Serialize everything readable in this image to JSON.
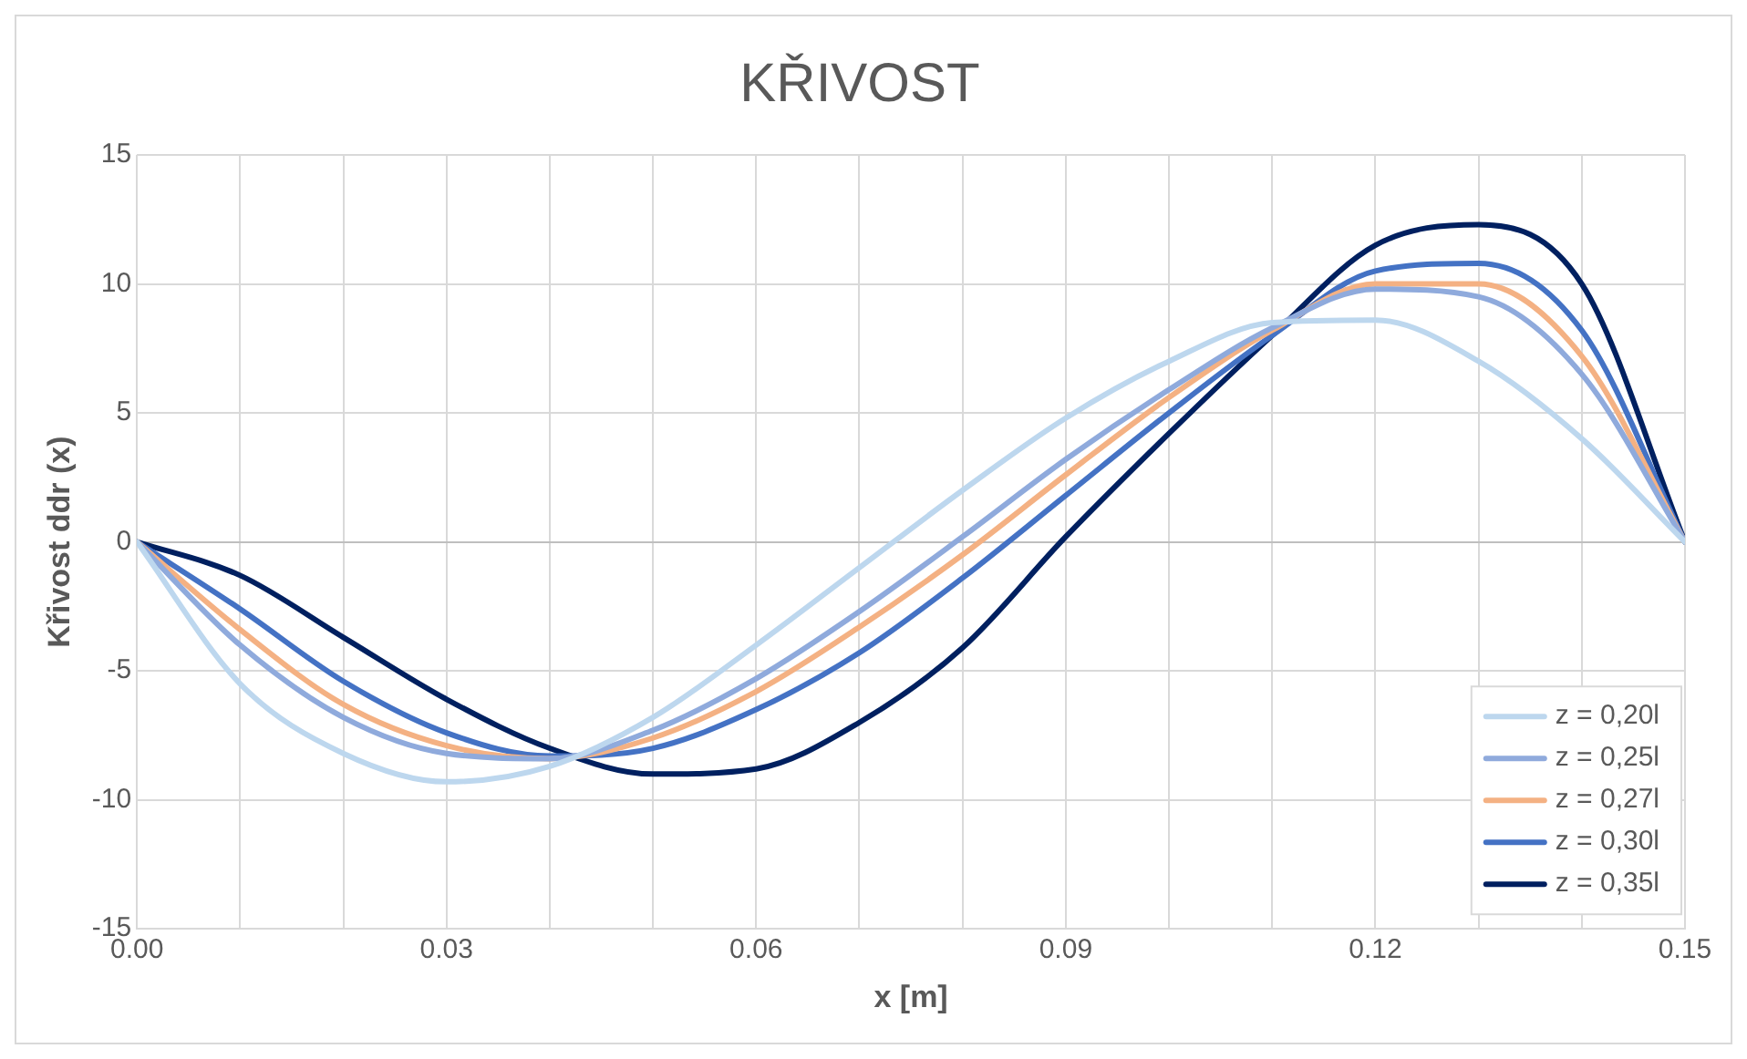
{
  "chart_data": {
    "type": "line",
    "title": "KŘIVOST",
    "xlabel": "x [m]",
    "ylabel": "Křivost ddr (x)",
    "x": [
      0,
      0.01,
      0.02,
      0.03,
      0.04,
      0.05,
      0.06,
      0.07,
      0.08,
      0.09,
      0.1,
      0.11,
      0.12,
      0.13,
      0.14,
      0.15
    ],
    "series": [
      {
        "name": "z = 0,20l",
        "color": "#bdd7ee",
        "values": [
          0,
          -5.5,
          -8.2,
          -9.3,
          -8.7,
          -6.8,
          -4.0,
          -1.0,
          2.0,
          4.8,
          7.0,
          8.5,
          8.6,
          7.0,
          4.0,
          0
        ]
      },
      {
        "name": "z = 0,25l",
        "color": "#8faadc",
        "values": [
          0,
          -4.0,
          -6.8,
          -8.2,
          -8.4,
          -7.3,
          -5.3,
          -2.7,
          0.2,
          3.2,
          5.9,
          8.3,
          9.8,
          9.5,
          6.5,
          0
        ]
      },
      {
        "name": "z = 0,27l",
        "color": "#f4b183",
        "values": [
          0,
          -3.4,
          -6.3,
          -7.9,
          -8.4,
          -7.6,
          -5.8,
          -3.3,
          -0.5,
          2.6,
          5.6,
          8.2,
          10.0,
          10.0,
          7.2,
          0
        ]
      },
      {
        "name": "z = 0,30l",
        "color": "#4472c4",
        "values": [
          0,
          -2.6,
          -5.4,
          -7.4,
          -8.3,
          -8.0,
          -6.5,
          -4.3,
          -1.4,
          1.8,
          5.0,
          8.0,
          10.5,
          10.8,
          8.2,
          0
        ]
      },
      {
        "name": "z = 0,35l",
        "color": "#002060",
        "values": [
          0,
          -1.3,
          -3.7,
          -6.1,
          -8.0,
          -9.0,
          -8.8,
          -7.0,
          -4.1,
          0.2,
          4.2,
          8.0,
          11.5,
          12.3,
          10.0,
          0
        ]
      }
    ],
    "xlim": [
      0,
      0.15
    ],
    "xticks": [
      {
        "value": 0,
        "label": "0.00"
      },
      {
        "value": 0.01,
        "label": null
      },
      {
        "value": 0.02,
        "label": null
      },
      {
        "value": 0.03,
        "label": "0.03"
      },
      {
        "value": 0.04,
        "label": null
      },
      {
        "value": 0.05,
        "label": null
      },
      {
        "value": 0.06,
        "label": "0.06"
      },
      {
        "value": 0.07,
        "label": null
      },
      {
        "value": 0.08,
        "label": null
      },
      {
        "value": 0.09,
        "label": "0.09"
      },
      {
        "value": 0.1,
        "label": null
      },
      {
        "value": 0.11,
        "label": null
      },
      {
        "value": 0.12,
        "label": "0.12"
      },
      {
        "value": 0.13,
        "label": null
      },
      {
        "value": 0.14,
        "label": null
      },
      {
        "value": 0.15,
        "label": "0.15"
      }
    ],
    "ylim": [
      -15,
      15
    ],
    "yticks": [
      -15,
      -10,
      -5,
      0,
      5,
      10,
      15
    ],
    "grid": true,
    "legend": "bottom right",
    "marker": "none",
    "line_style": "solid"
  }
}
